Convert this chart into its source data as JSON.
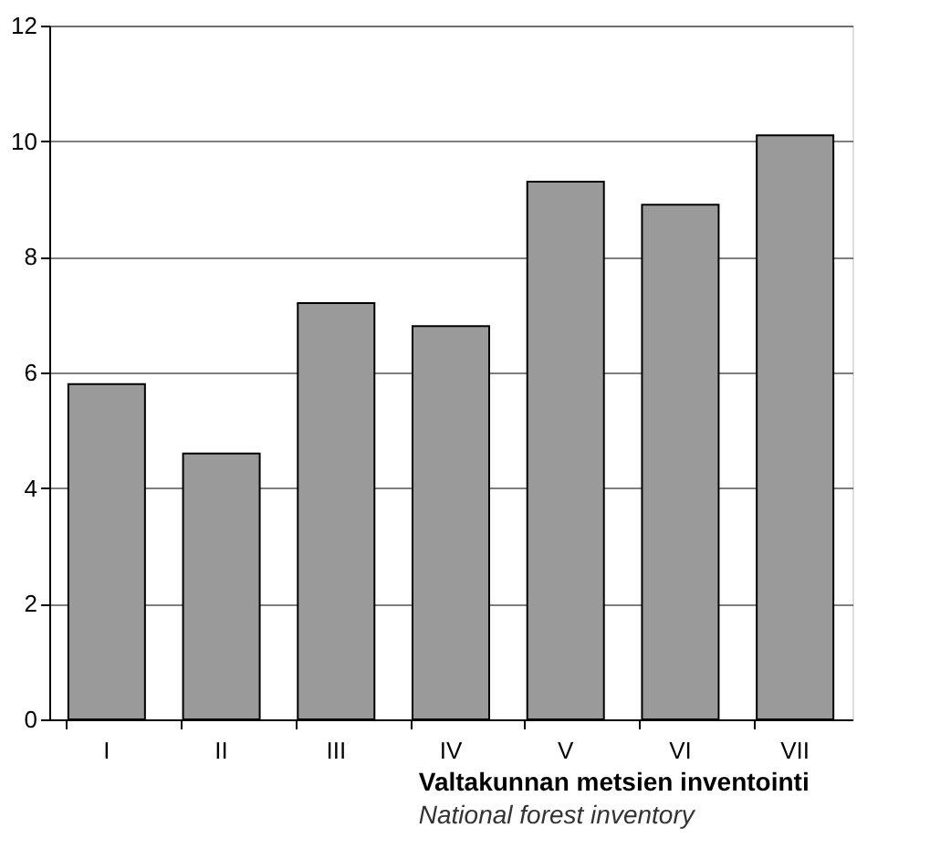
{
  "chart_data": {
    "type": "bar",
    "categories": [
      "I",
      "II",
      "III",
      "IV",
      "V",
      "VI",
      "VII"
    ],
    "values": [
      5.8,
      4.6,
      7.2,
      6.8,
      9.3,
      8.9,
      10.1
    ],
    "color": "#9a9a9a",
    "ylim": [
      0,
      12
    ],
    "yticks": [
      0,
      2,
      4,
      6,
      8,
      10,
      12
    ],
    "grid": "y",
    "xlabel": "Valtakunnan metsien inventointi",
    "annotations": [
      "National forest inventory"
    ]
  }
}
